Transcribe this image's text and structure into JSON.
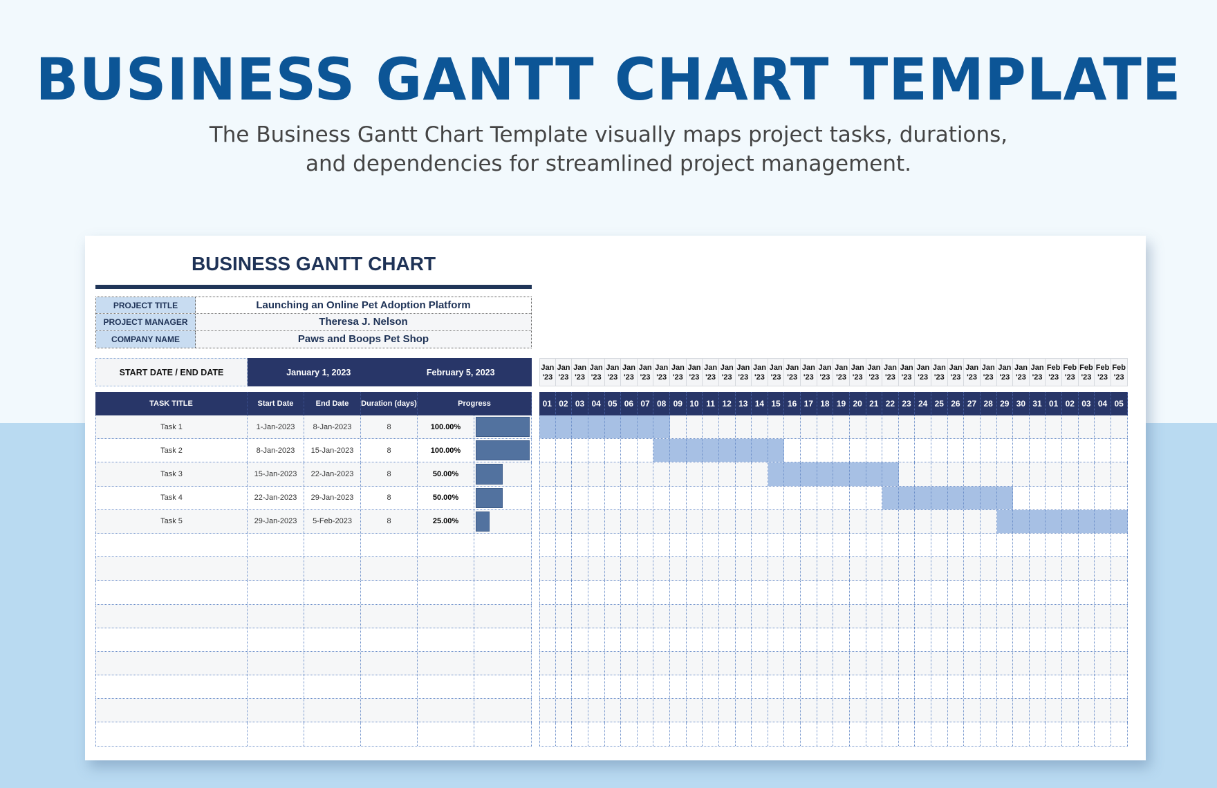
{
  "hero": {
    "title": "BUSINESS GANTT CHART TEMPLATE",
    "subtitle_line1": "The Business Gantt Chart Template visually maps project tasks, durations,",
    "subtitle_line2": "and dependencies for streamlined project management."
  },
  "sheet": {
    "title": "BUSINESS GANTT CHART",
    "info": [
      {
        "label": "PROJECT TITLE",
        "value": "Launching an Online Pet Adoption Platform"
      },
      {
        "label": "PROJECT MANAGER",
        "value": "Theresa J. Nelson"
      },
      {
        "label": "COMPANY NAME",
        "value": "Paws and Boops Pet Shop"
      }
    ],
    "dates": {
      "label": "START DATE  /  END DATE",
      "start": "January 1, 2023",
      "end": "February 5, 2023"
    },
    "columns": {
      "title": "TASK TITLE",
      "start": "Start Date",
      "end": "End Date",
      "duration": "Duration (days)",
      "progress": "Progress"
    },
    "tasks": [
      {
        "title": "Task 1",
        "start": "1-Jan-2023",
        "end": "8-Jan-2023",
        "duration": "8",
        "progress": "100.00%",
        "pct": 100,
        "from": 1,
        "to": 8
      },
      {
        "title": "Task 2",
        "start": "8-Jan-2023",
        "end": "15-Jan-2023",
        "duration": "8",
        "progress": "100.00%",
        "pct": 100,
        "from": 8,
        "to": 15
      },
      {
        "title": "Task 3",
        "start": "15-Jan-2023",
        "end": "22-Jan-2023",
        "duration": "8",
        "progress": "50.00%",
        "pct": 50,
        "from": 15,
        "to": 22
      },
      {
        "title": "Task 4",
        "start": "22-Jan-2023",
        "end": "29-Jan-2023",
        "duration": "8",
        "progress": "50.00%",
        "pct": 50,
        "from": 22,
        "to": 29
      },
      {
        "title": "Task 5",
        "start": "29-Jan-2023",
        "end": "5-Feb-2023",
        "duration": "8",
        "progress": "25.00%",
        "pct": 25,
        "from": 29,
        "to": 36
      }
    ],
    "empty_rows": 9,
    "timeline": {
      "months": [
        "Jan '23",
        "Jan '23",
        "Jan '23",
        "Jan '23",
        "Jan '23",
        "Jan '23",
        "Jan '23",
        "Jan '23",
        "Jan '23",
        "Jan '23",
        "Jan '23",
        "Jan '23",
        "Jan '23",
        "Jan '23",
        "Jan '23",
        "Jan '23",
        "Jan '23",
        "Jan '23",
        "Jan '23",
        "Jan '23",
        "Jan '23",
        "Jan '23",
        "Jan '23",
        "Jan '23",
        "Jan '23",
        "Jan '23",
        "Jan '23",
        "Jan '23",
        "Jan '23",
        "Jan '23",
        "Jan '23",
        "Feb '23",
        "Feb '23",
        "Feb '23",
        "Feb '23",
        "Feb '23"
      ],
      "days": [
        "01",
        "02",
        "03",
        "04",
        "05",
        "06",
        "07",
        "08",
        "09",
        "10",
        "11",
        "12",
        "13",
        "14",
        "15",
        "16",
        "17",
        "18",
        "19",
        "20",
        "21",
        "22",
        "23",
        "24",
        "25",
        "26",
        "27",
        "28",
        "29",
        "30",
        "31",
        "01",
        "02",
        "03",
        "04",
        "05"
      ]
    },
    "colors": {
      "navy": "#283668",
      "bar": "#a7c0e4",
      "progress": "#52729f",
      "title": "#0c5596"
    }
  }
}
